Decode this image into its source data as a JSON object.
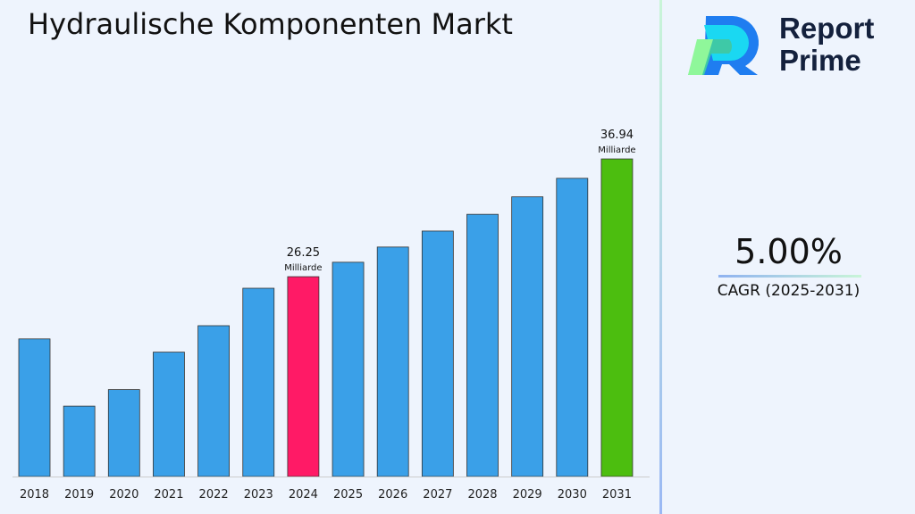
{
  "title": "Hydraulische Komponenten Markt",
  "brand": {
    "line1": "Report",
    "line2": "Prime"
  },
  "cagr": {
    "value": "5.00%",
    "label": "CAGR (2025-2031)"
  },
  "colors": {
    "default": "#3aa0e8",
    "highlight_base": "#ff1a66",
    "highlight_end": "#4cbe0f"
  },
  "chart_data": {
    "type": "bar",
    "categories": [
      "2018",
      "2019",
      "2020",
      "2021",
      "2022",
      "2023",
      "2024",
      "2025",
      "2026",
      "2027",
      "2028",
      "2029",
      "2030",
      "2031"
    ],
    "values": [
      20.6,
      14.5,
      16.0,
      19.4,
      21.8,
      25.2,
      26.25,
      27.56,
      28.94,
      30.39,
      31.91,
      33.5,
      35.18,
      36.94
    ],
    "data_labels": [
      {
        "category": "2024",
        "value": "26.25",
        "unit": "Milliarde"
      },
      {
        "category": "2031",
        "value": "36.94",
        "unit": "Milliarde"
      }
    ],
    "xlabel": "",
    "ylabel": "",
    "grid": false
  }
}
